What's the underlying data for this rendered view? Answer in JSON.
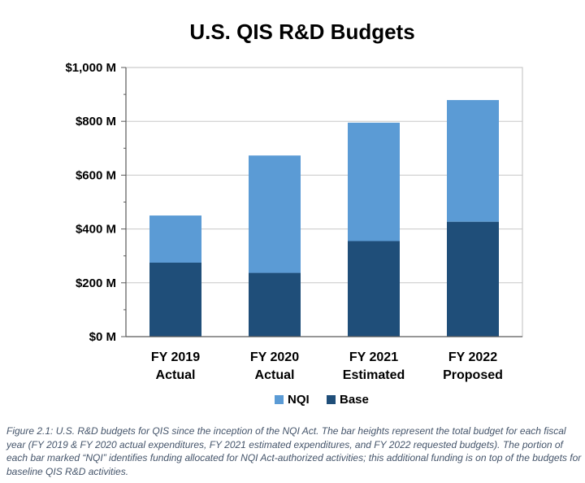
{
  "chart_data": {
    "type": "bar",
    "stacked": true,
    "title": "U.S. QIS R&D Budgets",
    "categories": [
      [
        "FY 2019",
        "Actual"
      ],
      [
        "FY 2020",
        "Actual"
      ],
      [
        "FY 2021",
        "Estimated"
      ],
      [
        "FY 2022",
        "Proposed"
      ]
    ],
    "series": [
      {
        "name": "Base",
        "color": "#1f4e79",
        "values": [
          275,
          237,
          355,
          427
        ]
      },
      {
        "name": "NQI",
        "color": "#5b9bd5",
        "values": [
          175,
          436,
          440,
          452
        ]
      }
    ],
    "totals": [
      450,
      673,
      795,
      879
    ],
    "ylim": [
      0,
      1000
    ],
    "yticks": [
      0,
      200,
      400,
      600,
      800,
      1000
    ],
    "ytick_labels": [
      "$0 M",
      "$200 M",
      "$400 M",
      "$600 M",
      "$800 M",
      "$1,000 M"
    ],
    "grid": true,
    "legend": {
      "position": "bottom",
      "order": [
        "NQI",
        "Base"
      ]
    }
  },
  "caption": "Figure 2.1: U.S. R&D budgets for QIS since the inception of the NQI Act. The bar heights represent the total budget for each fiscal year (FY 2019 & FY 2020 actual expenditures, FY 2021 estimated expenditures, and FY 2022 requested budgets). The portion of each bar marked “NQI” identifies funding allocated for NQI Act-authorized activities; this additional funding is on top of the budgets for baseline QIS R&D activities."
}
